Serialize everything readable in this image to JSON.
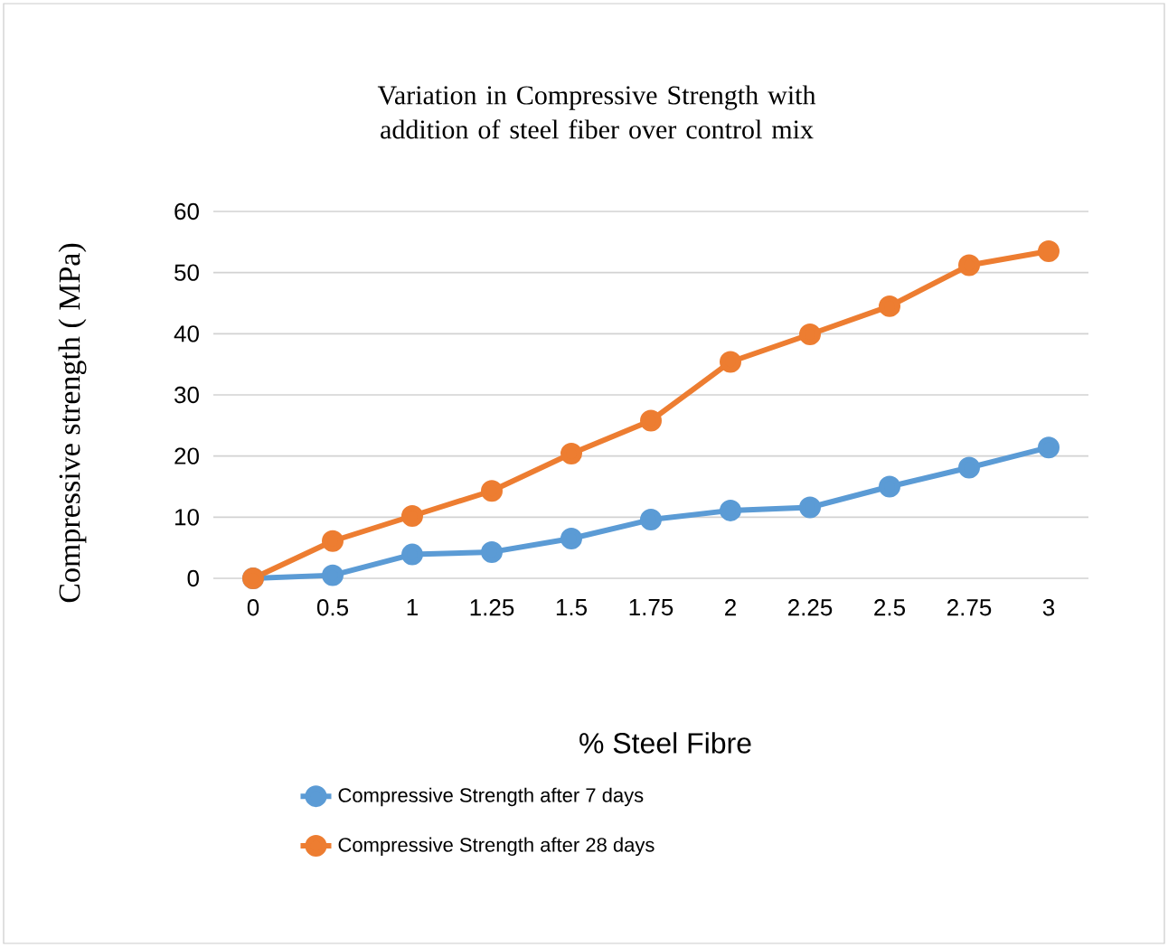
{
  "chart_data": {
    "type": "line",
    "title": "Variation in Compressive Strength with addition of steel fiber over control mix",
    "xlabel": "% Steel Fibre",
    "ylabel": "Compressive strength ( MPa)",
    "categories": [
      "0",
      "0.5",
      "1",
      "1.25",
      "1.5",
      "1.75",
      "2",
      "2.25",
      "2.5",
      "2.75",
      "3"
    ],
    "series": [
      {
        "name": "Compressive Strength after 7 days",
        "color": "#5b9bd5",
        "values": [
          0,
          0.5,
          3.9,
          4.3,
          6.5,
          9.6,
          11.1,
          11.6,
          15.0,
          18.1,
          21.4
        ]
      },
      {
        "name": "Compressive Strength after 28 days",
        "color": "#ed7d31",
        "values": [
          0,
          6.1,
          10.2,
          14.3,
          20.4,
          25.8,
          35.4,
          39.9,
          44.5,
          51.2,
          53.5
        ]
      }
    ],
    "ylim": [
      0,
      60
    ],
    "yticks": [
      0,
      10,
      20,
      30,
      40,
      50,
      60
    ],
    "grid": "y",
    "legend": "bottom",
    "marker": "circle",
    "line_style": "solid"
  }
}
